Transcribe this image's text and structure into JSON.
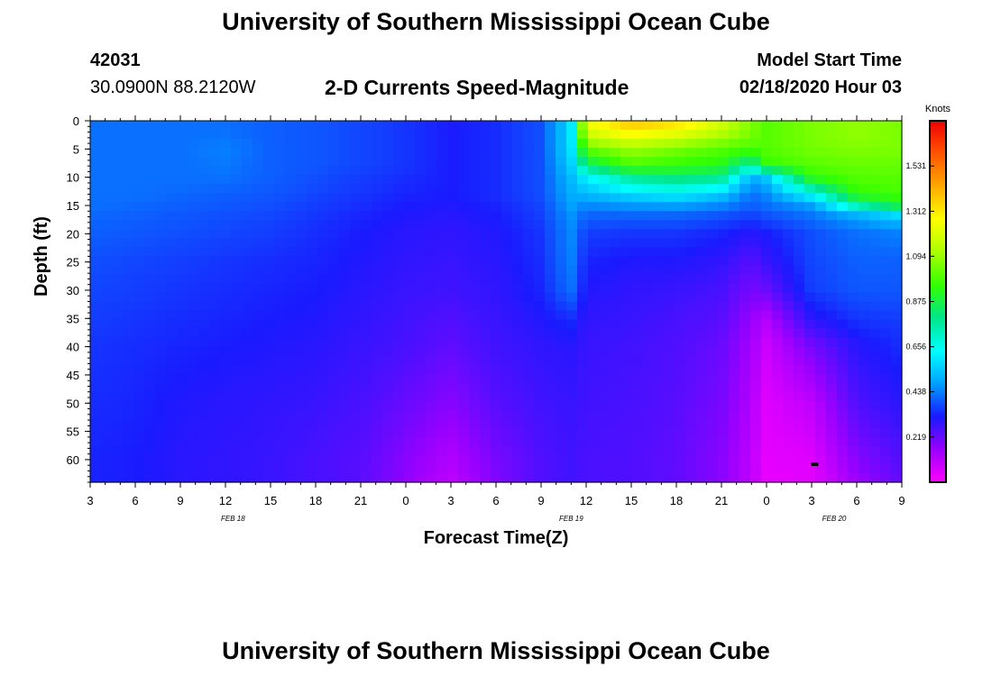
{
  "header": {
    "title": "University of Southern Mississippi Ocean Cube",
    "station_id": "42031",
    "location": "30.0900N 88.2120W",
    "subtitle": "2-D Currents Speed-Magnitude",
    "start_label": "Model Start Time",
    "start_value": "02/18/2020 Hour 03"
  },
  "footer": {
    "title": "University of Southern Mississippi Ocean Cube"
  },
  "chart_data": {
    "type": "heatmap",
    "title": "2-D Currents Speed-Magnitude",
    "xlabel": "Forecast Time(Z)",
    "ylabel": "Depth (ft)",
    "x_range_hours": [
      0,
      54
    ],
    "y_range_ft": [
      0,
      64
    ],
    "x_tick_labels": [
      "3",
      "6",
      "9",
      "12",
      "15",
      "18",
      "21",
      "0",
      "3",
      "6",
      "9",
      "12",
      "15",
      "18",
      "21",
      "0",
      "3",
      "6",
      "9"
    ],
    "y_ticks": [
      0,
      5,
      10,
      15,
      20,
      25,
      30,
      35,
      40,
      45,
      50,
      55,
      60
    ],
    "date_labels": [
      {
        "text": "FEB 18",
        "hour": 9.5
      },
      {
        "text": "FEB 19",
        "hour": 32
      },
      {
        "text": "FEB 20",
        "hour": 49.5
      }
    ],
    "colorbar": {
      "unit": "Knots",
      "min": 0,
      "max": 1.75,
      "ticks": [
        0.219,
        0.438,
        0.656,
        0.875,
        1.094,
        1.312,
        1.531
      ],
      "tick_labels": [
        "0.219",
        "0.438",
        "0.656",
        "0.875",
        "1.094",
        "1.312",
        "1.531"
      ],
      "colors": [
        "#ff00ff",
        "#9900ff",
        "#1a1aff",
        "#00a0ff",
        "#00ffff",
        "#00e68a",
        "#33ff00",
        "#aaff00",
        "#ffff00",
        "#ffaa00",
        "#ff5500",
        "#ee0000"
      ]
    },
    "grid": {
      "times": [
        0,
        3,
        6,
        9,
        12,
        15,
        18,
        21,
        24,
        27,
        30,
        32,
        33,
        36,
        39,
        42,
        44,
        45,
        48,
        51,
        54
      ],
      "depths": [
        0,
        2,
        5,
        8,
        10,
        13,
        15,
        17,
        20,
        25,
        30,
        35,
        40,
        50,
        60,
        64
      ],
      "speed": [
        [
          0.42,
          0.42,
          0.42,
          0.42,
          0.4,
          0.39,
          0.37,
          0.35,
          0.32,
          0.34,
          0.38,
          0.58,
          1.25,
          1.4,
          1.35,
          1.2,
          1.05,
          1.0,
          1.05,
          1.08,
          1.05
        ],
        [
          0.42,
          0.42,
          0.42,
          0.42,
          0.4,
          0.39,
          0.37,
          0.35,
          0.32,
          0.34,
          0.38,
          0.58,
          1.2,
          1.3,
          1.25,
          1.15,
          1.05,
          1.0,
          1.05,
          1.08,
          1.05
        ],
        [
          0.42,
          0.42,
          0.42,
          0.44,
          0.4,
          0.39,
          0.37,
          0.35,
          0.32,
          0.34,
          0.38,
          0.58,
          1.02,
          1.1,
          1.05,
          1.0,
          0.98,
          1.0,
          1.04,
          1.06,
          1.05
        ],
        [
          0.42,
          0.42,
          0.42,
          0.43,
          0.4,
          0.39,
          0.37,
          0.35,
          0.32,
          0.34,
          0.38,
          0.55,
          0.82,
          0.98,
          0.95,
          0.92,
          0.75,
          0.95,
          1.0,
          1.02,
          1.02
        ],
        [
          0.42,
          0.42,
          0.42,
          0.42,
          0.4,
          0.38,
          0.36,
          0.34,
          0.32,
          0.34,
          0.38,
          0.52,
          0.62,
          0.78,
          0.82,
          0.8,
          0.5,
          0.55,
          0.95,
          1.0,
          1.0
        ],
        [
          0.42,
          0.42,
          0.41,
          0.4,
          0.39,
          0.37,
          0.35,
          0.33,
          0.32,
          0.34,
          0.38,
          0.5,
          0.52,
          0.58,
          0.62,
          0.55,
          0.42,
          0.45,
          0.65,
          0.95,
          0.98
        ],
        [
          0.42,
          0.41,
          0.4,
          0.39,
          0.38,
          0.36,
          0.34,
          0.32,
          0.31,
          0.33,
          0.37,
          0.48,
          0.45,
          0.47,
          0.48,
          0.45,
          0.4,
          0.42,
          0.48,
          0.75,
          0.9
        ],
        [
          0.41,
          0.4,
          0.39,
          0.38,
          0.37,
          0.35,
          0.33,
          0.31,
          0.3,
          0.32,
          0.36,
          0.46,
          0.4,
          0.4,
          0.4,
          0.38,
          0.36,
          0.38,
          0.42,
          0.48,
          0.55
        ],
        [
          0.4,
          0.39,
          0.38,
          0.37,
          0.36,
          0.34,
          0.32,
          0.3,
          0.29,
          0.31,
          0.35,
          0.45,
          0.36,
          0.35,
          0.35,
          0.33,
          0.3,
          0.32,
          0.38,
          0.42,
          0.44
        ],
        [
          0.38,
          0.37,
          0.36,
          0.35,
          0.34,
          0.33,
          0.31,
          0.29,
          0.28,
          0.3,
          0.34,
          0.44,
          0.33,
          0.31,
          0.31,
          0.29,
          0.24,
          0.28,
          0.37,
          0.4,
          0.4
        ],
        [
          0.37,
          0.36,
          0.35,
          0.34,
          0.33,
          0.32,
          0.3,
          0.28,
          0.27,
          0.29,
          0.33,
          0.42,
          0.31,
          0.29,
          0.28,
          0.26,
          0.2,
          0.22,
          0.36,
          0.39,
          0.39
        ],
        [
          0.36,
          0.35,
          0.34,
          0.33,
          0.32,
          0.31,
          0.29,
          0.27,
          0.25,
          0.28,
          0.31,
          0.34,
          0.29,
          0.28,
          0.26,
          0.24,
          0.16,
          0.12,
          0.3,
          0.35,
          0.36
        ],
        [
          0.35,
          0.34,
          0.33,
          0.32,
          0.31,
          0.3,
          0.28,
          0.26,
          0.23,
          0.27,
          0.29,
          0.3,
          0.28,
          0.27,
          0.25,
          0.22,
          0.14,
          0.08,
          0.2,
          0.3,
          0.34
        ],
        [
          0.34,
          0.33,
          0.31,
          0.3,
          0.29,
          0.28,
          0.26,
          0.22,
          0.18,
          0.24,
          0.27,
          0.28,
          0.27,
          0.26,
          0.24,
          0.2,
          0.12,
          0.05,
          0.1,
          0.25,
          0.3
        ],
        [
          0.33,
          0.32,
          0.3,
          0.29,
          0.28,
          0.26,
          0.24,
          0.18,
          0.12,
          0.2,
          0.25,
          0.27,
          0.26,
          0.25,
          0.23,
          0.18,
          0.1,
          0.04,
          0.05,
          0.18,
          0.25
        ],
        [
          0.33,
          0.32,
          0.3,
          0.29,
          0.28,
          0.26,
          0.24,
          0.17,
          0.1,
          0.19,
          0.25,
          0.27,
          0.26,
          0.25,
          0.23,
          0.18,
          0.1,
          0.04,
          0.04,
          0.15,
          0.23
        ]
      ]
    }
  }
}
